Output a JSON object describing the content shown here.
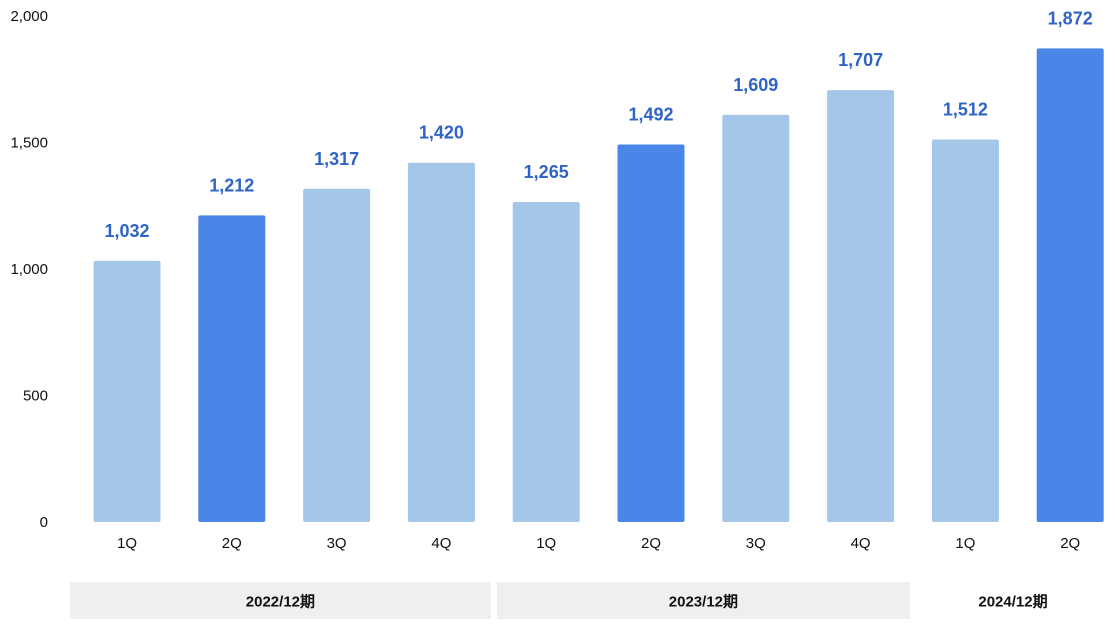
{
  "chart_data": {
    "type": "bar",
    "title": "",
    "xlabel": "",
    "ylabel": "",
    "ylim": [
      0,
      2000
    ],
    "yticks": [
      0,
      500,
      1000,
      1500,
      2000
    ],
    "ytick_labels": [
      "0",
      "500",
      "1,000",
      "1,500",
      "2,000"
    ],
    "grid": false,
    "legend": "none",
    "categories": [
      "1Q",
      "2Q",
      "3Q",
      "4Q",
      "1Q",
      "2Q",
      "3Q",
      "4Q",
      "1Q",
      "2Q"
    ],
    "values": [
      1032,
      1212,
      1317,
      1420,
      1265,
      1492,
      1609,
      1707,
      1512,
      1872
    ],
    "value_labels": [
      "1,032",
      "1,212",
      "1,317",
      "1,420",
      "1,265",
      "1,492",
      "1,609",
      "1,707",
      "1,512",
      "1,872"
    ],
    "groups": [
      {
        "label": "2022/12期",
        "categories": [
          "1Q",
          "2Q",
          "3Q",
          "4Q"
        ]
      },
      {
        "label": "2023/12期",
        "categories": [
          "1Q",
          "2Q",
          "3Q",
          "4Q"
        ]
      },
      {
        "label": "2024/12期",
        "categories": [
          "1Q",
          "2Q"
        ]
      }
    ],
    "colors": {
      "light_bar": "#a3c6e9",
      "dark_bar": "#4a86e8",
      "value_label": "#2f64c6",
      "group_band": "#efefef"
    },
    "highlighted_category": "2Q"
  }
}
